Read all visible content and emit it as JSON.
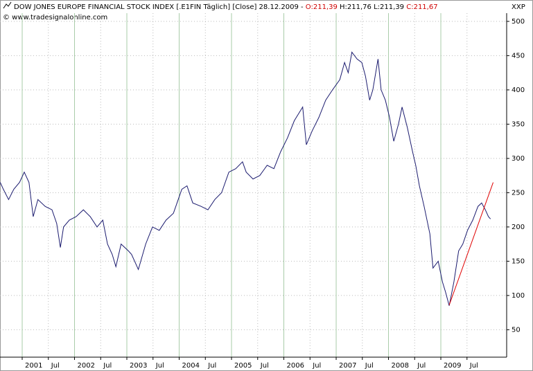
{
  "chart_data": {
    "type": "line",
    "title": "DOW JONES EUROPE FINANCIAL STOCK INDEX [.E1FIN  Täglich] [Close] 28.12.2009 -",
    "open": "O:211,39",
    "high": "H:211,76",
    "low": "L:211,39",
    "close": "C:211,67",
    "source": "© www.tradesignalonline.com",
    "y_axis_label": "XXP",
    "x": [
      2000.58,
      2000.64,
      2000.74,
      2000.84,
      2000.95,
      2001.04,
      2001.13,
      2001.21,
      2001.3,
      2001.44,
      2001.57,
      2001.66,
      2001.73,
      2001.79,
      2001.9,
      2002.03,
      2002.17,
      2002.3,
      2002.43,
      2002.54,
      2002.63,
      2002.72,
      2002.79,
      2002.89,
      2003.03,
      2003.09,
      2003.22,
      2003.36,
      2003.49,
      2003.62,
      2003.75,
      2003.89,
      2004.05,
      2004.15,
      2004.26,
      2004.42,
      2004.55,
      2004.68,
      2004.81,
      2004.95,
      2005.08,
      2005.21,
      2005.28,
      2005.41,
      2005.54,
      2005.68,
      2005.81,
      2005.94,
      2006.07,
      2006.2,
      2006.36,
      2006.43,
      2006.54,
      2006.67,
      2006.8,
      2006.93,
      2007.07,
      2007.16,
      2007.23,
      2007.3,
      2007.4,
      2007.49,
      2007.56,
      2007.64,
      2007.7,
      2007.8,
      2007.86,
      2007.94,
      2008.02,
      2008.1,
      2008.19,
      2008.26,
      2008.36,
      2008.46,
      2008.52,
      2008.59,
      2008.68,
      2008.79,
      2008.85,
      2008.95,
      2009.03,
      2009.09,
      2009.16,
      2009.25,
      2009.34,
      2009.42,
      2009.51,
      2009.61,
      2009.71,
      2009.78,
      2009.85,
      2009.91,
      2009.95
    ],
    "series": [
      {
        "color": "#1a1a6e",
        "values": [
          265,
          255,
          240,
          255,
          265,
          280,
          265,
          215,
          240,
          230,
          225,
          205,
          170,
          200,
          210,
          215,
          225,
          215,
          200,
          210,
          175,
          160,
          142,
          175,
          165,
          160,
          138,
          175,
          200,
          195,
          210,
          220,
          255,
          260,
          235,
          230,
          225,
          240,
          250,
          280,
          285,
          295,
          280,
          270,
          275,
          290,
          285,
          310,
          330,
          355,
          375,
          320,
          340,
          360,
          385,
          400,
          415,
          440,
          425,
          455,
          445,
          440,
          420,
          385,
          400,
          445,
          400,
          385,
          360,
          325,
          350,
          375,
          345,
          310,
          290,
          260,
          230,
          190,
          140,
          150,
          120,
          105,
          85,
          120,
          165,
          175,
          195,
          210,
          230,
          235,
          225,
          215,
          211.67
        ]
      }
    ],
    "trendline": {
      "color": "#e00000",
      "x": [
        2009.16,
        2010.0
      ],
      "values": [
        86,
        265
      ]
    },
    "xlim": [
      2000.576,
      2010.258
    ],
    "xticks": [
      2001,
      {
        "value": 2001.5,
        "label": "Jul"
      },
      2002,
      {
        "value": 2002.5,
        "label": "Jul"
      },
      2003,
      {
        "value": 2003.5,
        "label": "Jul"
      },
      2004,
      {
        "value": 2004.5,
        "label": "Jul"
      },
      2005,
      {
        "value": 2005.5,
        "label": "Jul"
      },
      2006,
      {
        "value": 2006.5,
        "label": "Jul"
      },
      2007,
      {
        "value": 2007.5,
        "label": "Jul"
      },
      2008,
      {
        "value": 2008.5,
        "label": "Jul"
      },
      2009,
      {
        "value": 2009.5,
        "label": "Jul"
      }
    ],
    "ylim": [
      10,
      512
    ],
    "yticks": [
      50,
      100,
      150,
      200,
      250,
      300,
      350,
      400,
      450,
      500
    ],
    "grid": true
  }
}
